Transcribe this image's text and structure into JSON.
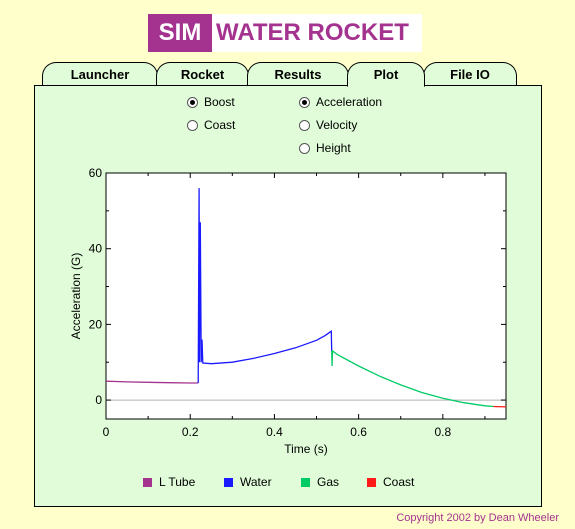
{
  "title": {
    "badge": "SIM",
    "main": "WATER ROCKET"
  },
  "tabs": [
    {
      "label": "Launcher",
      "active": false
    },
    {
      "label": "Rocket",
      "active": false
    },
    {
      "label": "Results",
      "active": false
    },
    {
      "label": "Plot",
      "active": true
    },
    {
      "label": "File IO",
      "active": false
    }
  ],
  "phase_options": [
    {
      "label": "Boost",
      "checked": true
    },
    {
      "label": "Coast",
      "checked": false
    }
  ],
  "quantity_options": [
    {
      "label": "Acceleration",
      "checked": true
    },
    {
      "label": "Velocity",
      "checked": false
    },
    {
      "label": "Height",
      "checked": false
    }
  ],
  "legend": [
    {
      "label": "L Tube",
      "color": "#a4338f"
    },
    {
      "label": "Water",
      "color": "#1a1aff"
    },
    {
      "label": "Gas",
      "color": "#00cc66"
    },
    {
      "label": "Coast",
      "color": "#ff1a1a"
    }
  ],
  "chart_data": {
    "type": "line",
    "xlabel": "Time (s)",
    "ylabel": "Acceleration (G)",
    "xlim": [
      0,
      0.95
    ],
    "ylim": [
      -5,
      60
    ],
    "xticks": [
      0,
      0.2,
      0.4,
      0.6,
      0.8
    ],
    "xtick_labels": [
      "0",
      "0.2",
      "0.4",
      "0.6",
      "0.8"
    ],
    "yticks": [
      0,
      20,
      40,
      60
    ],
    "ytick_labels": [
      "0",
      "20",
      "40",
      "60"
    ],
    "zero_line": true,
    "series": [
      {
        "name": "L Tube",
        "color": "#a4338f",
        "points": [
          [
            0,
            5.0
          ],
          [
            0.05,
            4.8
          ],
          [
            0.1,
            4.7
          ],
          [
            0.15,
            4.6
          ],
          [
            0.2,
            4.5
          ],
          [
            0.219,
            4.5
          ]
        ]
      },
      {
        "name": "Water",
        "color": "#1a1aff",
        "points": [
          [
            0.219,
            4.5
          ],
          [
            0.221,
            56
          ],
          [
            0.222,
            10
          ],
          [
            0.224,
            47
          ],
          [
            0.226,
            10
          ],
          [
            0.228,
            16
          ],
          [
            0.23,
            9.8
          ],
          [
            0.25,
            9.6
          ],
          [
            0.3,
            10.0
          ],
          [
            0.35,
            11.0
          ],
          [
            0.4,
            12.3
          ],
          [
            0.45,
            13.8
          ],
          [
            0.5,
            15.8
          ],
          [
            0.52,
            17.0
          ],
          [
            0.53,
            17.8
          ],
          [
            0.535,
            18.2
          ],
          [
            0.536,
            13.0
          ]
        ]
      },
      {
        "name": "Gas",
        "color": "#00cc66",
        "points": [
          [
            0.536,
            13.0
          ],
          [
            0.537,
            9.0
          ],
          [
            0.538,
            13.0
          ],
          [
            0.55,
            12.0
          ],
          [
            0.6,
            9.0
          ],
          [
            0.65,
            6.3
          ],
          [
            0.7,
            4.0
          ],
          [
            0.75,
            2.0
          ],
          [
            0.8,
            0.5
          ],
          [
            0.85,
            -0.7
          ],
          [
            0.9,
            -1.5
          ],
          [
            0.92,
            -1.7
          ]
        ]
      },
      {
        "name": "Coast",
        "color": "#ff1a1a",
        "points": [
          [
            0.92,
            -1.7
          ],
          [
            0.95,
            -1.8
          ]
        ]
      }
    ]
  },
  "copyright": "Copyright 2002 by Dean Wheeler"
}
